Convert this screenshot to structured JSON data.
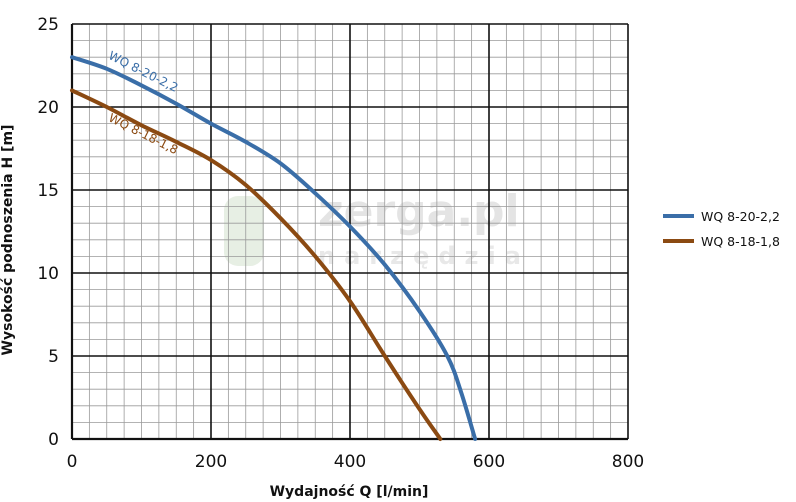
{
  "watermark": {
    "brand": "zerga.pl",
    "tagline": "narzędzia"
  },
  "chart_data": {
    "type": "line",
    "xlabel": "Wydajność Q [l/min]",
    "ylabel": "Wysokość podnoszenia H [m]",
    "xlim": [
      0,
      800
    ],
    "ylim": [
      0,
      25
    ],
    "xticks": [
      0,
      200,
      400,
      600,
      800
    ],
    "yticks": [
      0,
      5,
      10,
      15,
      20,
      25
    ],
    "grid": true,
    "legend_position": "right",
    "series": [
      {
        "name": "WQ 8-20-2,2",
        "color": "#3a6ea8",
        "x": [
          0,
          50,
          100,
          150,
          200,
          250,
          300,
          350,
          400,
          450,
          500,
          540,
          560,
          580
        ],
        "y": [
          23.0,
          22.3,
          21.3,
          20.2,
          19.0,
          17.9,
          16.6,
          14.8,
          12.8,
          10.5,
          7.7,
          5.0,
          2.8,
          0
        ]
      },
      {
        "name": "WQ 8-18-1,8",
        "color": "#8b4a12",
        "x": [
          0,
          50,
          100,
          150,
          200,
          250,
          300,
          350,
          400,
          450,
          500,
          530
        ],
        "y": [
          21.0,
          20.0,
          18.9,
          17.9,
          16.8,
          15.3,
          13.3,
          11.0,
          8.3,
          5.0,
          1.8,
          0
        ]
      }
    ]
  }
}
